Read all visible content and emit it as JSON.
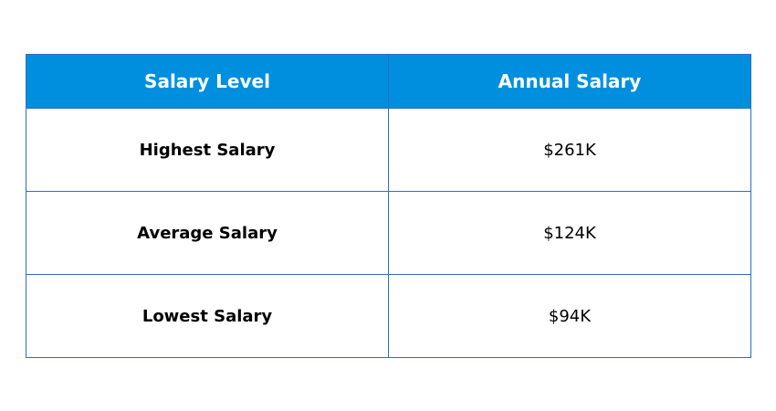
{
  "table": {
    "headers": [
      "Salary Level",
      "Annual Salary"
    ],
    "rows": [
      {
        "level": "Highest Salary",
        "amount": "$261K"
      },
      {
        "level": "Average Salary",
        "amount": "$124K"
      },
      {
        "level": "Lowest Salary",
        "amount": "$94K"
      }
    ]
  },
  "colors": {
    "header_bg": "#008fdf",
    "header_text": "#ffffff",
    "border": "#2a6fc4"
  }
}
